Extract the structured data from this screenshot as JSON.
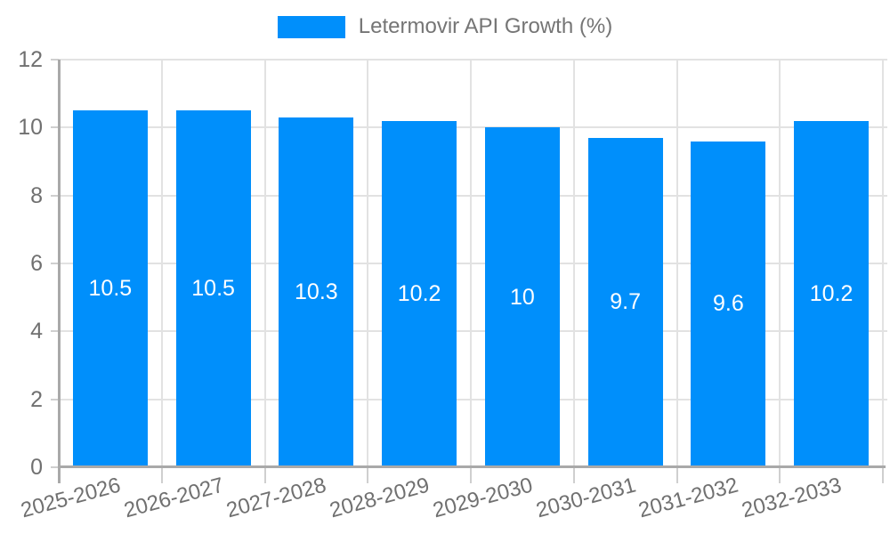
{
  "legend": {
    "label": "Letermovir API Growth (%)"
  },
  "colors": {
    "bar": "#008FFB",
    "grid": "#e2e2e2",
    "axis": "#a9a9a9",
    "tick": "#cfcfcf",
    "axis_label": "#707070",
    "legend_label": "#757575",
    "bar_label": "#ffffff"
  },
  "chart_data": {
    "type": "bar",
    "title": "",
    "xlabel": "",
    "ylabel": "",
    "categories": [
      "2025-2026",
      "2026-2027",
      "2027-2028",
      "2028-2029",
      "2029-2030",
      "2030-2031",
      "2031-2032",
      "2032-2033"
    ],
    "values": [
      10.5,
      10.5,
      10.3,
      10.2,
      10,
      9.7,
      9.6,
      10.2
    ],
    "value_labels": [
      "10.5",
      "10.5",
      "10.3",
      "10.2",
      "10",
      "9.7",
      "9.6",
      "10.2"
    ],
    "series_name": "Letermovir API Growth (%)",
    "ylim": [
      0,
      12
    ],
    "yticks": [
      0,
      2,
      4,
      6,
      8,
      10,
      12
    ],
    "grid": true,
    "legend_position": "top",
    "bar_label_position": "center",
    "x_label_rotation": -15
  }
}
